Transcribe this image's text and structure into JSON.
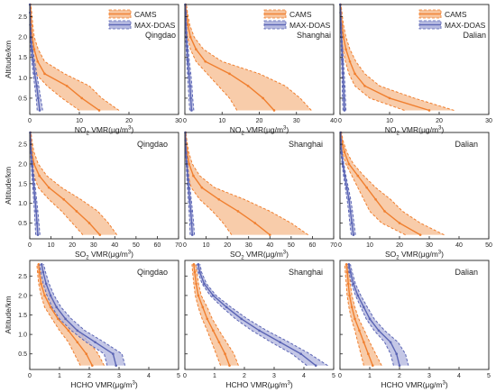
{
  "y_axis_label": "Altitude/km",
  "colors": {
    "cams_line": "#f07f2f",
    "cams_fill": "#f7c39b",
    "maxdoas_line": "#5a64b4",
    "maxdoas_fill": "#b5b9e0",
    "axis": "#222222"
  },
  "legend": {
    "cams": "CAMS",
    "maxdoas": "MAX-DOAS"
  },
  "chart_data": [
    {
      "id": "no2-qingdao",
      "type": "area",
      "title": "Qingdao",
      "xlabel_main": "NO",
      "xlabel_sub": "2",
      "xlabel_rest": " VMR(μg/m",
      "xlabel_sup": "3",
      "xlabel_end": ")",
      "xlim": [
        0,
        30
      ],
      "xticks": [
        0,
        10,
        20,
        30
      ],
      "ylim": [
        0.1,
        2.8
      ],
      "yticks": [
        0.5,
        1.0,
        1.5,
        2.0,
        2.5
      ],
      "legend": true,
      "altitude": [
        0.2,
        0.5,
        0.8,
        1.1,
        1.4,
        1.7,
        2.0,
        2.3,
        2.6,
        2.8
      ],
      "series": [
        {
          "name": "CAMS",
          "mean": [
            14.0,
            10.5,
            7.5,
            3.0,
            1.6,
            0.9,
            0.5,
            0.3,
            0.2,
            0.1
          ],
          "low": [
            10.0,
            6.5,
            3.5,
            1.2,
            0.7,
            0.4,
            0.2,
            0.1,
            0.1,
            0.05
          ],
          "high": [
            18.0,
            14.5,
            12.0,
            7.0,
            3.0,
            1.7,
            0.9,
            0.6,
            0.4,
            0.2
          ]
        },
        {
          "name": "MAX-DOAS",
          "mean": [
            2.0,
            1.7,
            1.4,
            1.0,
            0.7,
            0.4,
            0.2,
            0.1,
            0.05,
            0.03
          ],
          "low": [
            1.5,
            1.3,
            1.0,
            0.7,
            0.4,
            0.2,
            0.1,
            0.05,
            0.02,
            0.01
          ],
          "high": [
            2.6,
            2.2,
            1.8,
            1.4,
            1.0,
            0.6,
            0.35,
            0.2,
            0.1,
            0.05
          ]
        }
      ]
    },
    {
      "id": "no2-shanghai",
      "type": "area",
      "title": "Shanghai",
      "xlabel_main": "NO",
      "xlabel_sub": "2",
      "xlabel_rest": " VMR(μg/m",
      "xlabel_sup": "3",
      "xlabel_end": ")",
      "xlim": [
        0,
        40
      ],
      "xticks": [
        0,
        10,
        20,
        30,
        40
      ],
      "ylim": [
        0.1,
        2.8
      ],
      "yticks": [
        0.5,
        1.0,
        1.5,
        2.0,
        2.5
      ],
      "legend": true,
      "altitude": [
        0.2,
        0.5,
        0.8,
        1.1,
        1.4,
        1.7,
        2.0,
        2.3,
        2.6,
        2.8
      ],
      "series": [
        {
          "name": "CAMS",
          "mean": [
            24.0,
            21.0,
            17.0,
            12.0,
            5.5,
            3.0,
            1.5,
            0.8,
            0.4,
            0.2
          ],
          "low": [
            14.0,
            12.0,
            9.0,
            6.0,
            3.0,
            1.5,
            0.7,
            0.3,
            0.15,
            0.1
          ],
          "high": [
            34.0,
            31.0,
            27.0,
            20.0,
            10.0,
            5.0,
            2.5,
            1.3,
            0.7,
            0.4
          ]
        },
        {
          "name": "MAX-DOAS",
          "mean": [
            1.8,
            1.6,
            1.4,
            1.1,
            0.8,
            0.6,
            0.4,
            0.3,
            0.2,
            0.1
          ],
          "low": [
            1.3,
            1.1,
            0.9,
            0.7,
            0.5,
            0.35,
            0.2,
            0.15,
            0.1,
            0.05
          ],
          "high": [
            2.4,
            2.1,
            1.9,
            1.6,
            1.2,
            0.9,
            0.6,
            0.45,
            0.3,
            0.2
          ]
        }
      ]
    },
    {
      "id": "no2-dalian",
      "type": "area",
      "title": "Dalian",
      "xlabel_main": "NO",
      "xlabel_sub": "2",
      "xlabel_rest": " VMR(μg/m",
      "xlabel_sup": "3",
      "xlabel_end": ")",
      "xlim": [
        0,
        30
      ],
      "xticks": [
        0,
        10,
        20,
        30
      ],
      "ylim": [
        0.1,
        2.8
      ],
      "yticks": [
        0.5,
        1.0,
        1.5,
        2.0,
        2.5
      ],
      "legend": true,
      "altitude": [
        0.2,
        0.5,
        0.8,
        1.1,
        1.4,
        1.7,
        2.0,
        2.3,
        2.6,
        2.8
      ],
      "series": [
        {
          "name": "CAMS",
          "mean": [
            18.0,
            10.0,
            5.0,
            3.0,
            2.0,
            1.2,
            0.7,
            0.4,
            0.2,
            0.1
          ],
          "low": [
            13.0,
            6.0,
            3.0,
            1.8,
            1.1,
            0.6,
            0.3,
            0.2,
            0.1,
            0.05
          ],
          "high": [
            23.0,
            15.0,
            8.0,
            5.0,
            3.2,
            2.0,
            1.2,
            0.7,
            0.4,
            0.2
          ]
        },
        {
          "name": "MAX-DOAS",
          "mean": [
            0.9,
            0.8,
            0.7,
            0.6,
            0.5,
            0.4,
            0.3,
            0.2,
            0.1,
            0.05
          ],
          "low": [
            0.6,
            0.5,
            0.45,
            0.4,
            0.3,
            0.25,
            0.2,
            0.1,
            0.05,
            0.02
          ],
          "high": [
            1.2,
            1.1,
            1.0,
            0.85,
            0.7,
            0.55,
            0.4,
            0.3,
            0.2,
            0.1
          ]
        }
      ]
    },
    {
      "id": "so2-qingdao",
      "type": "area",
      "title": "Qingdao",
      "xlabel_main": "SO",
      "xlabel_sub": "2",
      "xlabel_rest": " VMR(μg/m",
      "xlabel_sup": "3",
      "xlabel_end": ")",
      "xlim": [
        0,
        70
      ],
      "xticks": [
        0,
        10,
        20,
        30,
        40,
        50,
        60,
        70
      ],
      "ylim": [
        0.1,
        2.8
      ],
      "yticks": [
        0.5,
        1.0,
        1.5,
        2.0,
        2.5
      ],
      "legend": false,
      "altitude": [
        0.2,
        0.5,
        0.8,
        1.1,
        1.4,
        1.7,
        2.0,
        2.3,
        2.6,
        2.8
      ],
      "series": [
        {
          "name": "CAMS",
          "mean": [
            33.0,
            28.0,
            22.0,
            16.0,
            9.0,
            4.5,
            2.0,
            1.0,
            0.5,
            0.3
          ],
          "low": [
            25.0,
            20.0,
            15.0,
            9.0,
            4.0,
            2.0,
            1.0,
            0.5,
            0.2,
            0.1
          ],
          "high": [
            41.0,
            37.0,
            32.0,
            24.0,
            15.0,
            8.0,
            4.0,
            2.0,
            1.0,
            0.6
          ]
        },
        {
          "name": "MAX-DOAS",
          "mean": [
            3.8,
            3.4,
            3.0,
            2.5,
            2.0,
            1.5,
            1.0,
            0.6,
            0.3,
            0.2
          ],
          "low": [
            2.8,
            2.5,
            2.2,
            1.8,
            1.4,
            1.0,
            0.7,
            0.4,
            0.2,
            0.1
          ],
          "high": [
            4.8,
            4.3,
            3.8,
            3.2,
            2.6,
            2.0,
            1.4,
            0.9,
            0.5,
            0.3
          ]
        }
      ]
    },
    {
      "id": "so2-shanghai",
      "type": "area",
      "title": "Shanghai",
      "xlabel_main": "SO",
      "xlabel_sub": "2",
      "xlabel_rest": " VMR(μg/m",
      "xlabel_sup": "3",
      "xlabel_end": ")",
      "xlim": [
        0,
        70
      ],
      "xticks": [
        0,
        10,
        20,
        30,
        40,
        50,
        60,
        70
      ],
      "ylim": [
        0.1,
        2.8
      ],
      "yticks": [
        0.5,
        1.0,
        1.5,
        2.0,
        2.5
      ],
      "legend": false,
      "altitude": [
        0.2,
        0.5,
        0.8,
        1.1,
        1.4,
        1.7,
        2.0,
        2.3,
        2.6,
        2.8
      ],
      "series": [
        {
          "name": "CAMS",
          "mean": [
            40.0,
            33.0,
            25.0,
            16.0,
            8.0,
            4.0,
            2.0,
            1.0,
            0.5,
            0.3
          ],
          "low": [
            22.0,
            18.0,
            13.0,
            7.0,
            3.0,
            1.5,
            0.7,
            0.3,
            0.15,
            0.1
          ],
          "high": [
            58.0,
            50.0,
            40.0,
            28.0,
            14.0,
            7.0,
            3.5,
            1.8,
            0.9,
            0.5
          ]
        },
        {
          "name": "MAX-DOAS",
          "mean": [
            3.5,
            3.2,
            2.8,
            2.3,
            1.8,
            1.3,
            0.9,
            0.5,
            0.3,
            0.2
          ],
          "low": [
            2.5,
            2.3,
            2.0,
            1.6,
            1.2,
            0.9,
            0.6,
            0.3,
            0.2,
            0.1
          ],
          "high": [
            4.5,
            4.1,
            3.6,
            3.0,
            2.4,
            1.8,
            1.2,
            0.8,
            0.4,
            0.3
          ]
        }
      ]
    },
    {
      "id": "so2-dalian",
      "type": "area",
      "title": "Dalian",
      "xlabel_main": "SO",
      "xlabel_sub": "2",
      "xlabel_rest": " VMR(μg/m",
      "xlabel_sup": "3",
      "xlabel_end": ")",
      "xlim": [
        0,
        50
      ],
      "xticks": [
        0,
        10,
        20,
        30,
        40,
        50
      ],
      "ylim": [
        0.1,
        2.8
      ],
      "yticks": [
        0.5,
        1.0,
        1.5,
        2.0,
        2.5
      ],
      "legend": false,
      "altitude": [
        0.2,
        0.5,
        0.8,
        1.1,
        1.4,
        1.7,
        2.0,
        2.3,
        2.6,
        2.8
      ],
      "series": [
        {
          "name": "CAMS",
          "mean": [
            27.0,
            20.0,
            15.0,
            12.0,
            9.0,
            6.0,
            3.0,
            1.5,
            0.6,
            0.3
          ],
          "low": [
            22.0,
            14.0,
            10.0,
            8.0,
            6.0,
            4.0,
            2.0,
            0.8,
            0.3,
            0.1
          ],
          "high": [
            35.0,
            27.0,
            21.0,
            17.0,
            12.0,
            8.0,
            4.5,
            2.3,
            1.0,
            0.5
          ]
        },
        {
          "name": "MAX-DOAS",
          "mean": [
            4.5,
            4.0,
            3.5,
            3.0,
            2.3,
            1.6,
            1.0,
            0.5,
            0.3,
            0.2
          ],
          "low": [
            3.8,
            3.3,
            2.9,
            2.4,
            1.8,
            1.2,
            0.7,
            0.3,
            0.2,
            0.1
          ],
          "high": [
            5.2,
            4.7,
            4.2,
            3.6,
            2.8,
            2.0,
            1.3,
            0.7,
            0.4,
            0.3
          ]
        }
      ]
    },
    {
      "id": "hcho-qingdao",
      "type": "area",
      "title": "Qingdao",
      "xlabel_main": "HCHO VMR(μg/m",
      "xlabel_sub": "",
      "xlabel_rest": "",
      "xlabel_sup": "3",
      "xlabel_end": ")",
      "xlim": [
        0,
        5
      ],
      "xticks": [
        0,
        1,
        2,
        3,
        4,
        5
      ],
      "ylim": [
        0.1,
        2.9
      ],
      "yticks": [
        0.5,
        1.0,
        1.5,
        2.0,
        2.5
      ],
      "legend": false,
      "altitude": [
        0.2,
        0.5,
        0.8,
        1.1,
        1.4,
        1.7,
        2.0,
        2.3,
        2.6,
        2.8
      ],
      "series": [
        {
          "name": "CAMS",
          "mean": [
            2.1,
            1.9,
            1.6,
            1.3,
            0.95,
            0.7,
            0.5,
            0.38,
            0.32,
            0.3
          ],
          "low": [
            1.7,
            1.5,
            1.3,
            1.0,
            0.75,
            0.5,
            0.38,
            0.3,
            0.26,
            0.24
          ],
          "high": [
            2.5,
            2.3,
            2.0,
            1.6,
            1.2,
            0.9,
            0.65,
            0.48,
            0.38,
            0.35
          ]
        },
        {
          "name": "MAX-DOAS",
          "mean": [
            2.9,
            2.8,
            2.2,
            1.6,
            1.2,
            0.9,
            0.7,
            0.55,
            0.45,
            0.4
          ],
          "low": [
            2.6,
            2.5,
            1.9,
            1.4,
            1.0,
            0.75,
            0.58,
            0.45,
            0.37,
            0.33
          ],
          "high": [
            3.2,
            3.1,
            2.5,
            1.85,
            1.4,
            1.05,
            0.82,
            0.65,
            0.53,
            0.47
          ]
        }
      ]
    },
    {
      "id": "hcho-shanghai",
      "type": "area",
      "title": "Shanghai",
      "xlabel_main": "HCHO VMR(μg/m",
      "xlabel_sub": "",
      "xlabel_rest": "",
      "xlabel_sup": "3",
      "xlabel_end": ")",
      "xlim": [
        0,
        5
      ],
      "xticks": [
        0,
        1,
        2,
        3,
        4,
        5
      ],
      "ylim": [
        0.1,
        2.9
      ],
      "yticks": [
        0.5,
        1.0,
        1.5,
        2.0,
        2.5
      ],
      "legend": false,
      "altitude": [
        0.2,
        0.5,
        0.8,
        1.1,
        1.4,
        1.7,
        2.0,
        2.3,
        2.6,
        2.8
      ],
      "series": [
        {
          "name": "CAMS",
          "mean": [
            1.5,
            1.35,
            1.15,
            0.95,
            0.75,
            0.6,
            0.45,
            0.38,
            0.33,
            0.3
          ],
          "low": [
            1.2,
            1.05,
            0.9,
            0.75,
            0.58,
            0.45,
            0.35,
            0.3,
            0.26,
            0.24
          ],
          "high": [
            1.8,
            1.65,
            1.4,
            1.15,
            0.92,
            0.75,
            0.55,
            0.46,
            0.4,
            0.36
          ]
        },
        {
          "name": "MAX-DOAS",
          "mean": [
            4.4,
            3.9,
            3.2,
            2.5,
            1.9,
            1.4,
            0.95,
            0.65,
            0.5,
            0.45
          ],
          "low": [
            4.1,
            3.6,
            2.9,
            2.25,
            1.7,
            1.25,
            0.85,
            0.58,
            0.44,
            0.39
          ],
          "high": [
            4.8,
            4.2,
            3.5,
            2.75,
            2.1,
            1.55,
            1.05,
            0.73,
            0.56,
            0.51
          ]
        }
      ]
    },
    {
      "id": "hcho-dalian",
      "type": "area",
      "title": "Dalian",
      "xlabel_main": "HCHO VMR(μg/m",
      "xlabel_sub": "",
      "xlabel_rest": "",
      "xlabel_sup": "3",
      "xlabel_end": ")",
      "xlim": [
        0,
        5
      ],
      "xticks": [
        0,
        1,
        2,
        3,
        4,
        5
      ],
      "ylim": [
        0.1,
        2.9
      ],
      "yticks": [
        0.5,
        1.0,
        1.5,
        2.0,
        2.5
      ],
      "legend": false,
      "altitude": [
        0.2,
        0.5,
        0.8,
        1.1,
        1.4,
        1.7,
        2.0,
        2.3,
        2.6,
        2.8
      ],
      "series": [
        {
          "name": "CAMS",
          "mean": [
            1.1,
            0.95,
            0.8,
            0.65,
            0.5,
            0.4,
            0.32,
            0.28,
            0.25,
            0.22
          ],
          "low": [
            0.8,
            0.7,
            0.6,
            0.5,
            0.38,
            0.3,
            0.24,
            0.21,
            0.18,
            0.16
          ],
          "high": [
            1.4,
            1.2,
            1.0,
            0.82,
            0.63,
            0.5,
            0.4,
            0.35,
            0.31,
            0.28
          ]
        },
        {
          "name": "MAX-DOAS",
          "mean": [
            2.0,
            1.9,
            1.7,
            1.3,
            1.0,
            0.8,
            0.6,
            0.45,
            0.35,
            0.3
          ],
          "low": [
            1.8,
            1.7,
            1.5,
            1.15,
            0.88,
            0.7,
            0.52,
            0.39,
            0.3,
            0.26
          ],
          "high": [
            2.3,
            2.2,
            1.95,
            1.5,
            1.15,
            0.92,
            0.7,
            0.52,
            0.41,
            0.35
          ]
        }
      ]
    }
  ]
}
